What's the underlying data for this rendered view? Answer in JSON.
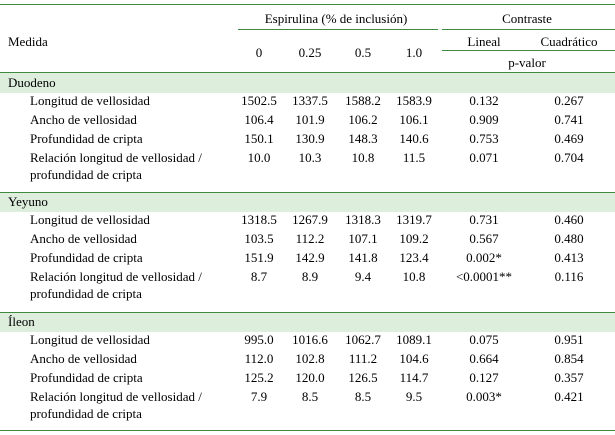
{
  "header": {
    "measure_label": "Medida",
    "group_label": "Espirulina (% de inclusión)",
    "levels": [
      "0",
      "0.25",
      "0.5",
      "1.0"
    ],
    "contrast_label": "Contraste",
    "contrasts": [
      "Lineal",
      "Cuadrático"
    ],
    "pvalue_label": "p-valor"
  },
  "sections": [
    {
      "name": "Duodeno",
      "rows": [
        {
          "label": [
            "Longitud de vellosidad"
          ],
          "values": [
            "1502.5",
            "1337.5",
            "1588.2",
            "1583.9"
          ],
          "lineal": "0.132",
          "cuadratico": "0.267"
        },
        {
          "label": [
            "Ancho de vellosidad"
          ],
          "values": [
            "106.4",
            "101.9",
            "106.2",
            "106.1"
          ],
          "lineal": "0.909",
          "cuadratico": "0.741"
        },
        {
          "label": [
            "Profundidad de cripta"
          ],
          "values": [
            "150.1",
            "130.9",
            "148.3",
            "140.6"
          ],
          "lineal": "0.753",
          "cuadratico": "0.469"
        },
        {
          "label": [
            "Relación longitud de vellosidad /",
            "profundidad de cripta"
          ],
          "values": [
            "10.0",
            "10.3",
            "10.8",
            "11.5"
          ],
          "lineal": "0.071",
          "cuadratico": "0.704"
        }
      ]
    },
    {
      "name": "Yeyuno",
      "rows": [
        {
          "label": [
            "Longitud de vellosidad"
          ],
          "values": [
            "1318.5",
            "1267.9",
            "1318.3",
            "1319.7"
          ],
          "lineal": "0.731",
          "cuadratico": "0.460"
        },
        {
          "label": [
            "Ancho de vellosidad"
          ],
          "values": [
            "103.5",
            "112.2",
            "107.1",
            "109.2"
          ],
          "lineal": "0.567",
          "cuadratico": "0.480"
        },
        {
          "label": [
            "Profundidad de cripta"
          ],
          "values": [
            "151.9",
            "142.9",
            "141.8",
            "123.4"
          ],
          "lineal": "0.002*",
          "cuadratico": "0.413"
        },
        {
          "label": [
            "Relación longitud de vellosidad /",
            "profundidad de cripta"
          ],
          "values": [
            "8.7",
            "8.9",
            "9.4",
            "10.8"
          ],
          "lineal": "<0.0001**",
          "cuadratico": "0.116"
        }
      ]
    },
    {
      "name": "Íleon",
      "rows": [
        {
          "label": [
            "Longitud de vellosidad"
          ],
          "values": [
            "995.0",
            "1016.6",
            "1062.7",
            "1089.1"
          ],
          "lineal": "0.075",
          "cuadratico": "0.951"
        },
        {
          "label": [
            "Ancho de vellosidad"
          ],
          "values": [
            "112.0",
            "102.8",
            "111.2",
            "104.6"
          ],
          "lineal": "0.664",
          "cuadratico": "0.854"
        },
        {
          "label": [
            "Profundidad de cripta"
          ],
          "values": [
            "125.2",
            "120.0",
            "126.5",
            "114.7"
          ],
          "lineal": "0.127",
          "cuadratico": "0.357"
        },
        {
          "label": [
            "Relación longitud de vellosidad /",
            "profundidad de cripta"
          ],
          "values": [
            "7.9",
            "8.5",
            "8.5",
            "9.5"
          ],
          "lineal": "0.003*",
          "cuadratico": "0.421"
        }
      ]
    }
  ],
  "colors": {
    "rule": "#3f8a3f",
    "section_fill": "#ddeedd",
    "text": "#000000"
  }
}
